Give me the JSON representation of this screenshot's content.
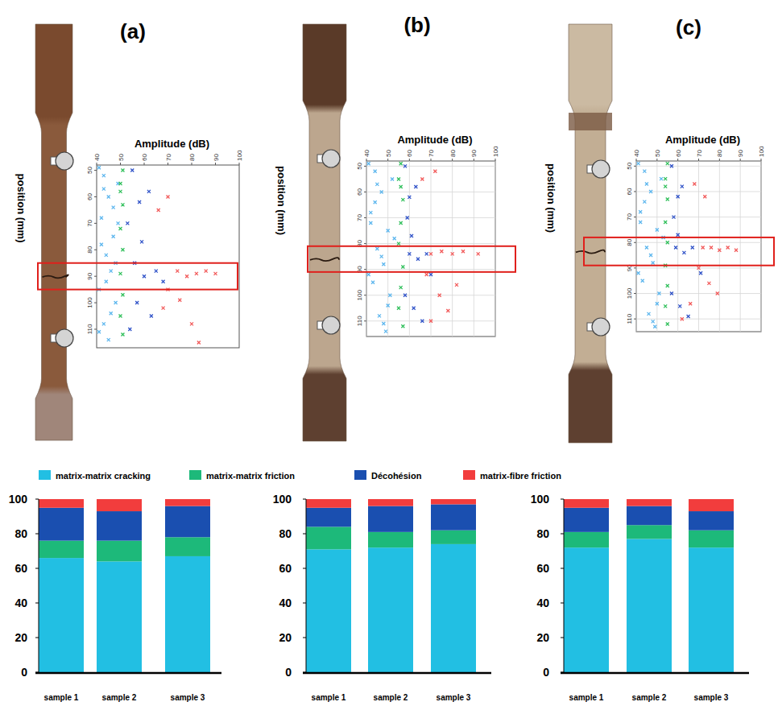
{
  "chart_data": [
    {
      "type": "scatter",
      "title": "(a)",
      "x_label": "Amplitude (dB)",
      "y_label": "position (mm)",
      "xlim": [
        40,
        100
      ],
      "xticks": [
        40,
        50,
        60,
        70,
        80,
        90,
        100
      ],
      "ylim": [
        48,
        117
      ],
      "yticks": [
        50,
        60,
        70,
        80,
        90,
        100,
        110
      ],
      "grid": false,
      "highlight_range": [
        85,
        95
      ],
      "series": [
        {
          "color": "#5cb6ee",
          "x": [
            41,
            43,
            45,
            42,
            47,
            44,
            46,
            41,
            48,
            43,
            45,
            49,
            47,
            42,
            44,
            48,
            46,
            43,
            49,
            41
          ],
          "values": [
            49,
            52,
            60,
            68,
            75,
            82,
            88,
            95,
            100,
            108,
            114,
            55,
            64,
            78,
            92,
            85,
            104,
            57,
            70,
            111
          ]
        },
        {
          "color": "#2fbf5a",
          "x": [
            51,
            50,
            51,
            50,
            51,
            50,
            51,
            50,
            51,
            50
          ],
          "values": [
            50,
            55,
            63,
            72,
            80,
            89,
            97,
            105,
            112,
            58
          ]
        },
        {
          "color": "#2f52c8",
          "x": [
            55,
            58,
            53,
            62,
            56,
            60,
            65,
            57,
            63,
            54,
            59,
            68
          ],
          "values": [
            50,
            62,
            70,
            58,
            85,
            90,
            88,
            100,
            105,
            110,
            77,
            92
          ]
        },
        {
          "color": "#f25a5a",
          "x": [
            66,
            70,
            74,
            78,
            82,
            86,
            90,
            70,
            75,
            68,
            80,
            83
          ],
          "values": [
            65,
            60,
            88,
            90,
            89,
            88,
            89,
            95,
            99,
            102,
            108,
            115
          ]
        }
      ]
    },
    {
      "type": "scatter",
      "title": "(b)",
      "x_label": "Amplitude (dB)",
      "y_label": "position (mm)",
      "xlim": [
        40,
        100
      ],
      "xticks": [
        40,
        50,
        60,
        70,
        80,
        90,
        100
      ],
      "ylim": [
        48,
        116
      ],
      "yticks": [
        50,
        60,
        70,
        80,
        90,
        100,
        110
      ],
      "grid": true,
      "highlight_range": [
        81,
        91
      ],
      "series": [
        {
          "color": "#5cb6ee",
          "x": [
            41,
            44,
            47,
            42,
            50,
            45,
            48,
            43,
            51,
            46,
            49,
            52,
            44,
            53,
            41,
            47,
            50,
            45,
            42,
            48
          ],
          "values": [
            49,
            52,
            60,
            68,
            75,
            82,
            88,
            95,
            100,
            108,
            114,
            55,
            64,
            78,
            92,
            85,
            104,
            57,
            72,
            111
          ]
        },
        {
          "color": "#2fbf5a",
          "x": [
            56,
            55,
            57,
            56,
            55,
            57,
            56,
            55,
            57,
            56
          ],
          "values": [
            49,
            55,
            63,
            72,
            80,
            89,
            97,
            105,
            112,
            58
          ]
        },
        {
          "color": "#2f52c8",
          "x": [
            58,
            60,
            59,
            63,
            60,
            64,
            68,
            58,
            62,
            66,
            61,
            70
          ],
          "values": [
            50,
            62,
            70,
            58,
            84,
            86,
            84,
            100,
            105,
            110,
            77,
            92
          ]
        },
        {
          "color": "#f25a5a",
          "x": [
            66,
            72,
            70,
            75,
            80,
            85,
            92,
            68,
            74,
            78,
            70,
            82
          ],
          "values": [
            55,
            52,
            84,
            83,
            84,
            83,
            84,
            92,
            100,
            106,
            110,
            96
          ]
        }
      ]
    },
    {
      "type": "scatter",
      "title": "(c)",
      "x_label": "Amplitude (dB)",
      "y_label": "position (mm)",
      "xlim": [
        40,
        100
      ],
      "xticks": [
        40,
        50,
        60,
        70,
        80,
        90,
        100
      ],
      "ylim": [
        48,
        115
      ],
      "yticks": [
        50,
        60,
        70,
        80,
        90,
        100,
        110
      ],
      "grid": true,
      "highlight_range": [
        78,
        89
      ],
      "series": [
        {
          "color": "#5cb6ee",
          "x": [
            41,
            44,
            47,
            42,
            50,
            45,
            48,
            43,
            51,
            46,
            49,
            52,
            44,
            53,
            41,
            47,
            50,
            45,
            42,
            48
          ],
          "values": [
            49,
            52,
            60,
            68,
            75,
            82,
            88,
            95,
            100,
            108,
            113,
            55,
            64,
            78,
            92,
            85,
            104,
            57,
            72,
            111
          ]
        },
        {
          "color": "#2fbf5a",
          "x": [
            55,
            54,
            55,
            54,
            55,
            54,
            55,
            54,
            55,
            54
          ],
          "values": [
            49,
            55,
            63,
            72,
            80,
            89,
            97,
            105,
            112,
            58
          ]
        },
        {
          "color": "#2f52c8",
          "x": [
            57,
            60,
            58,
            62,
            59,
            63,
            67,
            57,
            61,
            65,
            60,
            71
          ],
          "values": [
            50,
            62,
            70,
            58,
            82,
            84,
            82,
            100,
            105,
            109,
            77,
            92
          ]
        },
        {
          "color": "#f25a5a",
          "x": [
            68,
            73,
            72,
            76,
            80,
            84,
            88,
            70,
            75,
            66,
            79,
            62
          ],
          "values": [
            57,
            62,
            82,
            82,
            83,
            82,
            83,
            90,
            96,
            104,
            100,
            110
          ]
        }
      ]
    },
    {
      "type": "bar",
      "stacked": true,
      "legend": "top",
      "categories": [
        "sample 1",
        "sample 2",
        "sample 3"
      ],
      "ylim": [
        0,
        100
      ],
      "yticks": [
        0,
        20,
        40,
        60,
        80,
        100
      ],
      "series": [
        {
          "name": "matrix-matrix cracking",
          "color": "#22bfe3",
          "values": [
            66,
            64,
            67
          ]
        },
        {
          "name": "matrix-matrix friction",
          "color": "#1db97a",
          "values": [
            10,
            12,
            11
          ]
        },
        {
          "name": "Décohésion",
          "color": "#1a4fb0",
          "values": [
            19,
            17,
            18
          ]
        },
        {
          "name": "matrix-fibre friction",
          "color": "#f23d3d",
          "values": [
            5,
            7,
            4
          ]
        }
      ]
    },
    {
      "type": "bar",
      "stacked": true,
      "categories": [
        "sample 1",
        "sample 2",
        "sample 3"
      ],
      "ylim": [
        0,
        100
      ],
      "yticks": [
        0,
        20,
        40,
        60,
        80,
        100
      ],
      "series": [
        {
          "color": "#22bfe3",
          "values": [
            71,
            72,
            74
          ]
        },
        {
          "color": "#1db97a",
          "values": [
            13,
            9,
            8
          ]
        },
        {
          "color": "#1a4fb0",
          "values": [
            11,
            15,
            15
          ]
        },
        {
          "color": "#f23d3d",
          "values": [
            5,
            4,
            3
          ]
        }
      ]
    },
    {
      "type": "bar",
      "stacked": true,
      "categories": [
        "sample 1",
        "sample 2",
        "sample 3"
      ],
      "ylim": [
        0,
        100
      ],
      "yticks": [
        0,
        20,
        40,
        60,
        80,
        100
      ],
      "series": [
        {
          "color": "#22bfe3",
          "values": [
            72,
            77,
            72
          ]
        },
        {
          "color": "#1db97a",
          "values": [
            9,
            8,
            10
          ]
        },
        {
          "color": "#1a4fb0",
          "values": [
            14,
            11,
            11
          ]
        },
        {
          "color": "#f23d3d",
          "values": [
            5,
            4,
            7
          ]
        }
      ]
    }
  ]
}
